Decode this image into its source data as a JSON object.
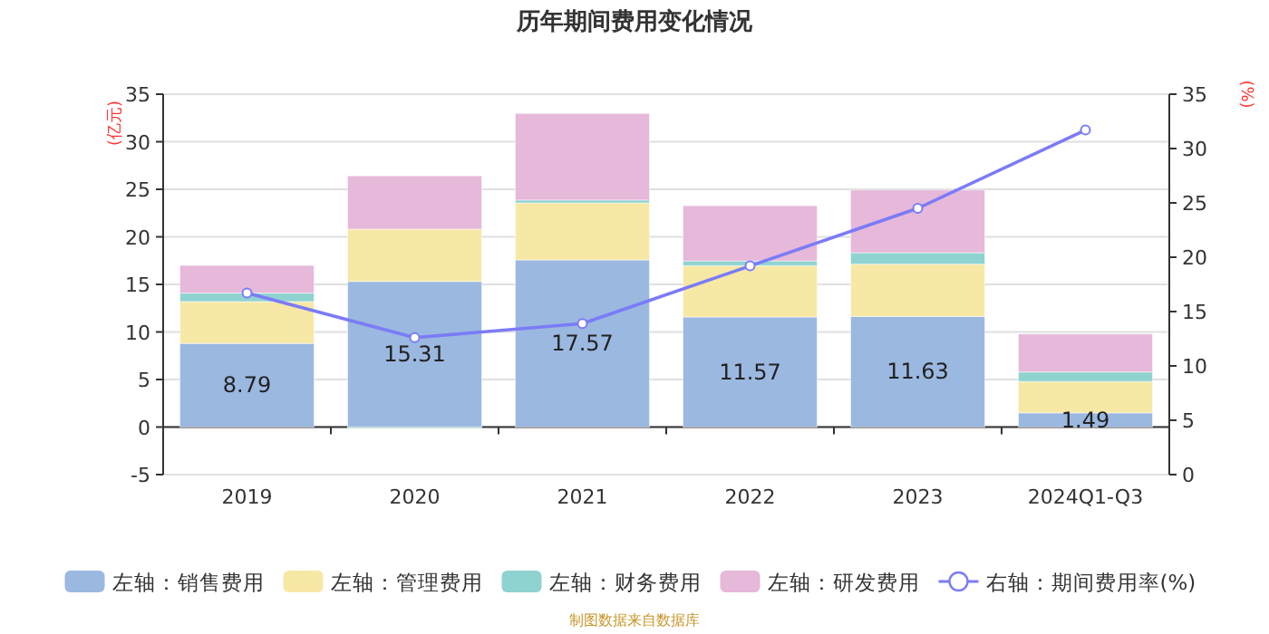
{
  "chart_data": {
    "type": "bar",
    "title": "历年期间费用变化情况",
    "ylabel": "(亿元)",
    "y2label": "(%)",
    "categories": [
      "2019",
      "2020",
      "2021",
      "2022",
      "2023",
      "2024Q1-Q3"
    ],
    "stacked": true,
    "grid": "y",
    "legend": "bottom",
    "ylim": [
      -5,
      35
    ],
    "yticks": [
      -5,
      0,
      5,
      10,
      15,
      20,
      25,
      30,
      35
    ],
    "y2lim": [
      0,
      35
    ],
    "y2ticks": [
      0,
      5,
      10,
      15,
      20,
      25,
      30,
      35
    ],
    "series": [
      {
        "name": "左轴：销售费用",
        "color": "#9bb8e0",
        "values": [
          8.79,
          15.31,
          17.57,
          11.57,
          11.63,
          1.49
        ],
        "value_labels": [
          "8.79",
          "15.31",
          "17.57",
          "11.57",
          "11.63",
          "1.49"
        ]
      },
      {
        "name": "左轴：管理费用",
        "color": "#f7e8a6",
        "values": [
          4.4,
          5.5,
          6.0,
          5.4,
          5.5,
          3.3
        ]
      },
      {
        "name": "左轴：财务费用",
        "color": "#8fd3d1",
        "values": [
          0.9,
          -0.1,
          0.3,
          0.5,
          1.2,
          1.0
        ]
      },
      {
        "name": "左轴：研发费用",
        "color": "#e6b8d9",
        "values": [
          2.9,
          5.6,
          9.1,
          5.8,
          6.6,
          4.0
        ]
      },
      {
        "name": "右轴：期间费用率(%)",
        "type": "line",
        "axis": "y2",
        "marker": "circle",
        "color": "#7b7bf7",
        "values": [
          16.7,
          12.6,
          13.9,
          19.2,
          24.5,
          31.7
        ]
      }
    ],
    "annotations": [
      "制图数据来自数据库"
    ]
  }
}
